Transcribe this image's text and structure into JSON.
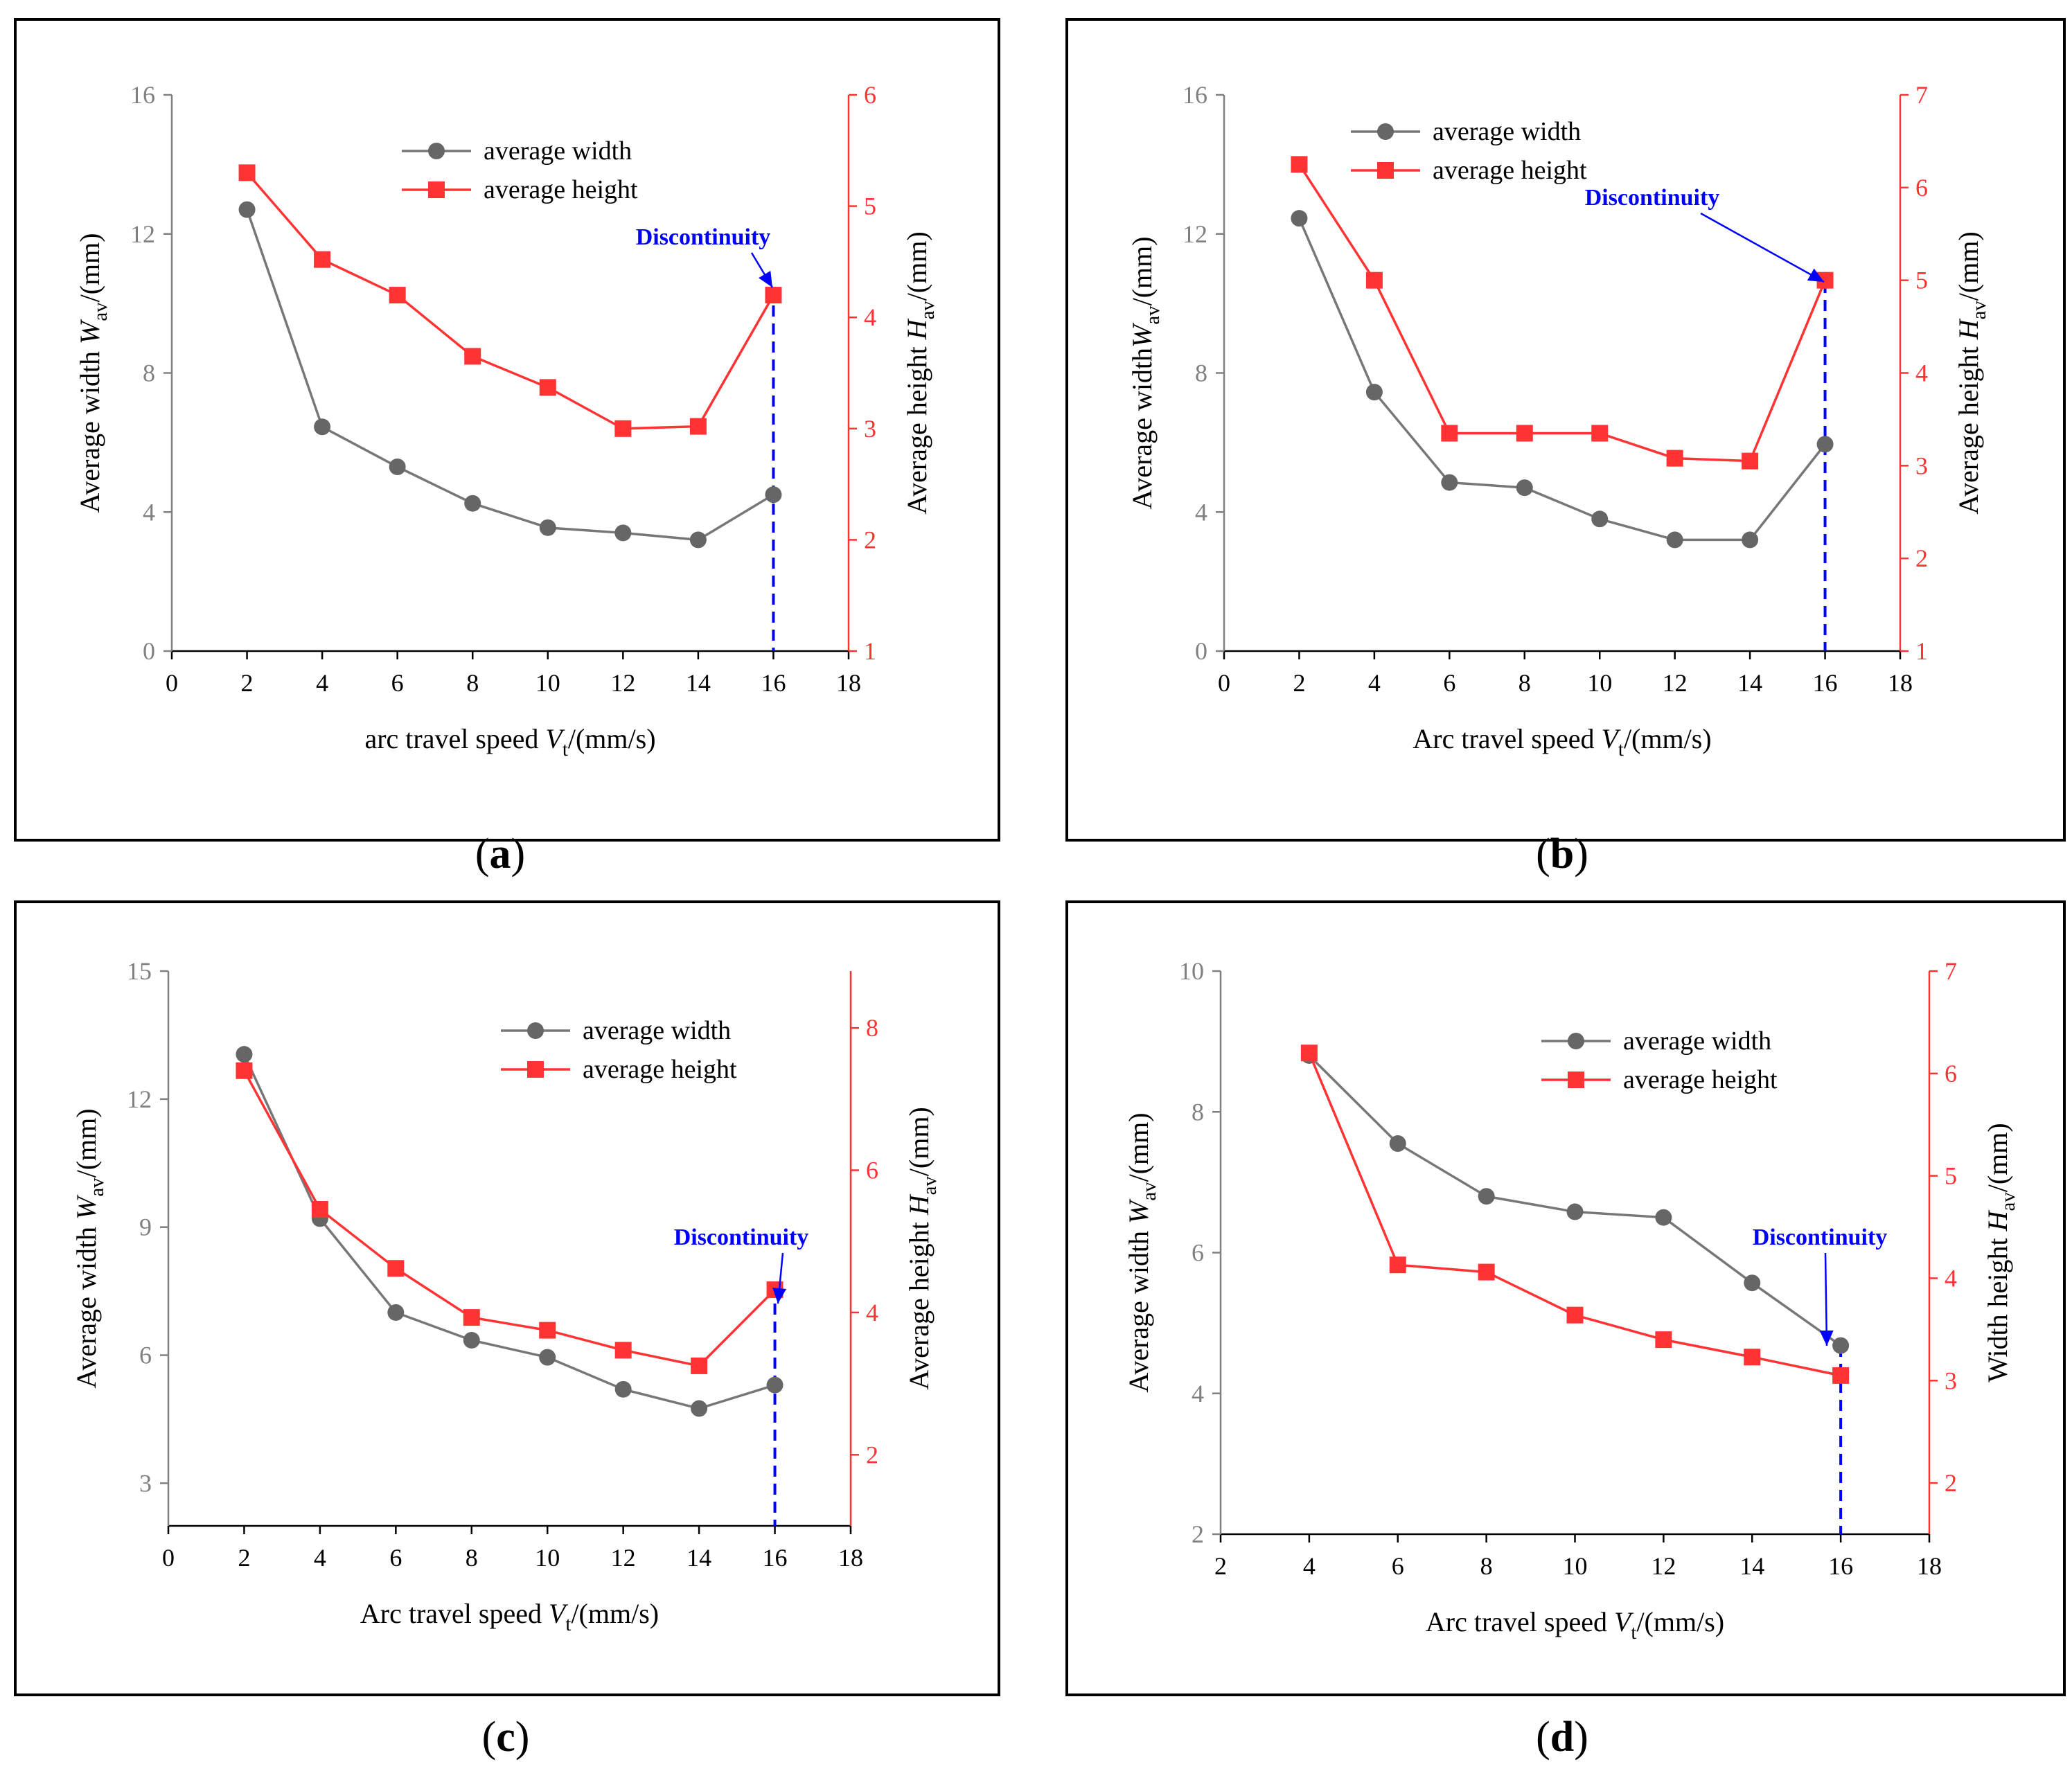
{
  "chart_data": [
    {
      "type": "line",
      "panel_label": "(a)",
      "title": "",
      "xlabel": {
        "main": "arc travel speed ",
        "var": "V",
        "sub": "t",
        "unit": "/(mm/s)"
      },
      "ylabel_left": {
        "main": "Average width ",
        "var": "W",
        "sub": "av",
        "unit": "/(mm)"
      },
      "ylabel_right": {
        "main": "Average height ",
        "var": "H",
        "sub": "av",
        "unit": "/(mm)"
      },
      "xlim": [
        0,
        18
      ],
      "xticks": [
        "0",
        "2",
        "4",
        "6",
        "8",
        "10",
        "12",
        "14",
        "16",
        "18"
      ],
      "ylim_left": [
        0,
        16
      ],
      "yticks_left": [
        "0",
        "4",
        "8",
        "12",
        "16"
      ],
      "ylim_right": [
        1,
        6
      ],
      "yticks_right": [
        "1",
        "2",
        "3",
        "4",
        "5",
        "6"
      ],
      "series": [
        {
          "name": "average width",
          "axis": "left",
          "color": "#666666",
          "marker": "circle",
          "x": [
            2,
            4,
            6,
            8,
            10,
            12,
            14,
            16
          ],
          "values": [
            12.7,
            6.45,
            5.3,
            4.25,
            3.55,
            3.4,
            3.2,
            4.5
          ]
        },
        {
          "name": "average height",
          "axis": "right",
          "color": "#ff3333",
          "marker": "square",
          "x": [
            2,
            4,
            6,
            8,
            10,
            12,
            14,
            16
          ],
          "values": [
            5.3,
            4.52,
            4.2,
            3.65,
            3.37,
            3.0,
            3.02,
            4.2
          ]
        }
      ],
      "legend": "top-center",
      "annotation": {
        "text": "Discontinuity",
        "x": 16,
        "color": "#0000ff"
      }
    },
    {
      "type": "line",
      "panel_label": "(b)",
      "title": "",
      "xlabel": {
        "main": "Arc travel speed ",
        "var": "V",
        "sub": "t",
        "unit": "/(mm/s)"
      },
      "ylabel_left": {
        "main": "Average width",
        "var": "W",
        "sub": "av",
        "unit": "/(mm)"
      },
      "ylabel_right": {
        "main": "Average height ",
        "var": "H",
        "sub": "av",
        "unit": "/(mm)"
      },
      "xlim": [
        0,
        18
      ],
      "xticks": [
        "0",
        "2",
        "4",
        "6",
        "8",
        "10",
        "12",
        "14",
        "16",
        "18"
      ],
      "ylim_left": [
        0,
        16
      ],
      "yticks_left": [
        "0",
        "4",
        "8",
        "12",
        "16"
      ],
      "ylim_right": [
        1,
        7
      ],
      "yticks_right": [
        "1",
        "2",
        "3",
        "4",
        "5",
        "6",
        "7"
      ],
      "series": [
        {
          "name": "average width",
          "axis": "left",
          "color": "#666666",
          "marker": "circle",
          "x": [
            2,
            4,
            6,
            8,
            10,
            12,
            14,
            16
          ],
          "values": [
            12.45,
            7.45,
            4.85,
            4.7,
            3.8,
            3.2,
            3.2,
            5.95
          ]
        },
        {
          "name": "average height",
          "axis": "right",
          "color": "#ff3333",
          "marker": "square",
          "x": [
            2,
            4,
            6,
            8,
            10,
            12,
            14,
            16
          ],
          "values": [
            6.25,
            5.0,
            3.35,
            3.35,
            3.35,
            3.08,
            3.05,
            5.0
          ]
        }
      ],
      "legend": "top-left",
      "annotation": {
        "text": "Discontinuity",
        "x": 16,
        "color": "#0000ff"
      }
    },
    {
      "type": "line",
      "panel_label": "(c)",
      "title": "",
      "xlabel": {
        "main": "Arc travel speed ",
        "var": "V",
        "sub": "t",
        "unit": "/(mm/s)"
      },
      "ylabel_left": {
        "main": "Average width ",
        "var": "W",
        "sub": "av",
        "unit": "/(mm)"
      },
      "ylabel_right": {
        "main": "Average height ",
        "var": "H",
        "sub": "av",
        "unit": "/(mm)"
      },
      "xlim": [
        0,
        18
      ],
      "xticks": [
        "0",
        "2",
        "4",
        "6",
        "8",
        "10",
        "12",
        "14",
        "16",
        "18"
      ],
      "ylim_left": [
        2,
        15
      ],
      "yticks_left": [
        "3",
        "6",
        "9",
        "12",
        "15"
      ],
      "ylim_right": [
        1.0,
        8.8
      ],
      "yticks_right": [
        "2",
        "4",
        "6",
        "8"
      ],
      "series": [
        {
          "name": "average width",
          "axis": "left",
          "color": "#666666",
          "marker": "circle",
          "x": [
            2,
            4,
            6,
            8,
            10,
            12,
            14,
            16
          ],
          "values": [
            13.05,
            9.2,
            7.0,
            6.35,
            5.95,
            5.2,
            4.75,
            5.3
          ]
        },
        {
          "name": "average height",
          "axis": "right",
          "color": "#ff3333",
          "marker": "square",
          "x": [
            2,
            4,
            6,
            8,
            10,
            12,
            14,
            16
          ],
          "values": [
            7.4,
            5.45,
            4.62,
            3.93,
            3.75,
            3.47,
            3.25,
            4.32
          ]
        }
      ],
      "legend": "top-right",
      "annotation": {
        "text": "Discontinuity",
        "x": 16,
        "color": "#0000ff"
      }
    },
    {
      "type": "line",
      "panel_label": "(d)",
      "title": "",
      "xlabel": {
        "main": "Arc travel speed ",
        "var": "V",
        "sub": "t",
        "unit": "/(mm/s)"
      },
      "ylabel_left": {
        "main": "Average width ",
        "var": "W",
        "sub": "av",
        "unit": "/(mm)"
      },
      "ylabel_right": {
        "main": "Width height ",
        "var": "H",
        "sub": "av",
        "unit": "/(mm)"
      },
      "xlim": [
        2,
        18
      ],
      "xticks": [
        "2",
        "4",
        "6",
        "8",
        "10",
        "12",
        "14",
        "16",
        "18"
      ],
      "ylim_left": [
        2,
        10
      ],
      "yticks_left": [
        "2",
        "4",
        "6",
        "8",
        "10"
      ],
      "ylim_right": [
        1.5,
        7
      ],
      "yticks_right": [
        "2",
        "3",
        "4",
        "5",
        "6",
        "7"
      ],
      "series": [
        {
          "name": "average width",
          "axis": "left",
          "color": "#666666",
          "marker": "circle",
          "x": [
            4,
            6,
            8,
            10,
            12,
            14,
            16
          ],
          "values": [
            8.8,
            7.55,
            6.8,
            6.58,
            6.5,
            5.57,
            4.68
          ]
        },
        {
          "name": "average height",
          "axis": "right",
          "color": "#ff3333",
          "marker": "square",
          "x": [
            4,
            6,
            8,
            10,
            12,
            14,
            16
          ],
          "values": [
            6.2,
            4.13,
            4.06,
            3.64,
            3.4,
            3.23,
            3.05
          ]
        }
      ],
      "legend": "top-right",
      "annotation": {
        "text": "Discontinuity",
        "x": 16,
        "color": "#0000ff"
      }
    }
  ]
}
